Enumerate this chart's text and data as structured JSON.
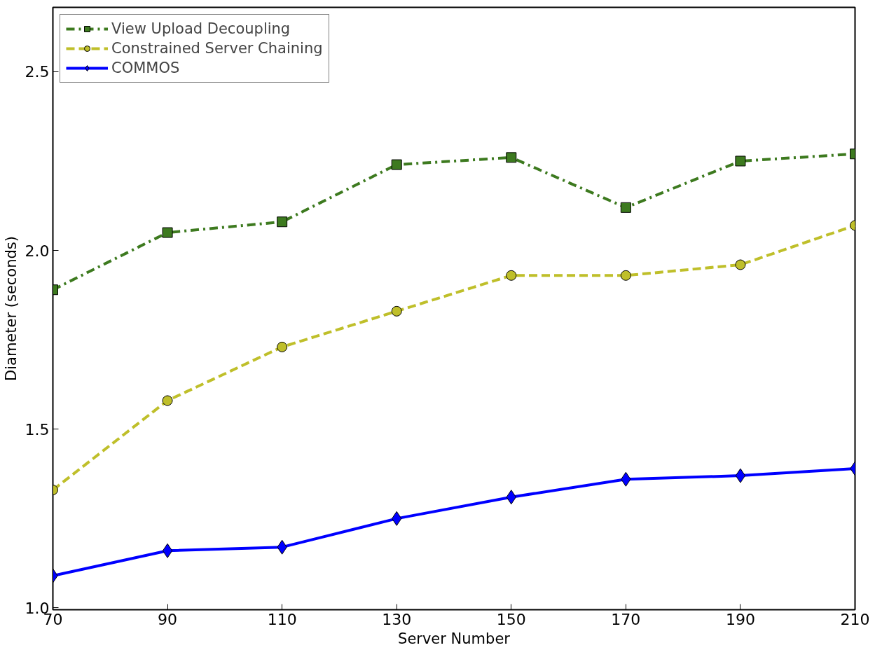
{
  "chart_data": {
    "type": "line",
    "xlabel": "Server Number",
    "ylabel": "Diameter (seconds)",
    "x": [
      70,
      90,
      110,
      130,
      150,
      170,
      190,
      210
    ],
    "series": [
      {
        "name": "View Upload Decoupling",
        "color": "#3d7a1f",
        "marker": "square",
        "line_style": "dashdot",
        "values": [
          1.89,
          2.05,
          2.08,
          2.24,
          2.26,
          2.12,
          2.25,
          2.27
        ]
      },
      {
        "name": "Constrained Server Chaining",
        "color": "#bfbf2a",
        "marker": "circle",
        "line_style": "dashed",
        "values": [
          1.33,
          1.58,
          1.73,
          1.83,
          1.93,
          1.93,
          1.96,
          2.07
        ]
      },
      {
        "name": "COMMOS",
        "color": "#0000ff",
        "marker": "diamond",
        "line_style": "solid",
        "values": [
          1.09,
          1.16,
          1.17,
          1.25,
          1.31,
          1.36,
          1.37,
          1.39
        ]
      }
    ],
    "xlim": [
      70,
      210
    ],
    "ylim": [
      0.995,
      2.68
    ],
    "xticks": [
      70,
      90,
      110,
      130,
      150,
      170,
      190,
      210
    ],
    "yticks": [
      {
        "value": 1.0,
        "label": "1.0"
      },
      {
        "value": 1.5,
        "label": "1.5"
      },
      {
        "value": 2.0,
        "label": "2.0"
      },
      {
        "value": 2.5,
        "label": "2.5"
      }
    ],
    "grid": false,
    "legend": "top left"
  }
}
